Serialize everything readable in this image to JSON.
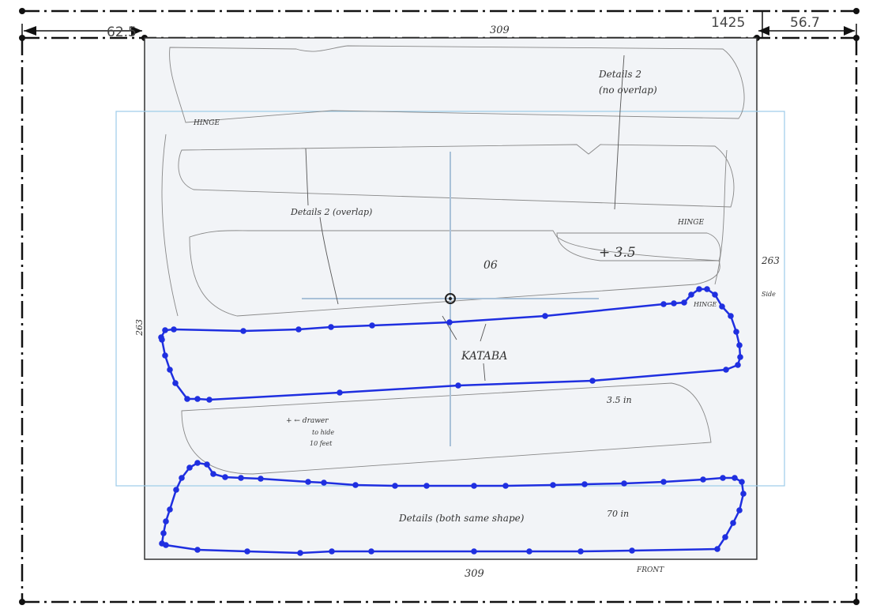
{
  "dimensions": {
    "left_offset": "62.5",
    "top_width": "309",
    "right_offset_a": "1425",
    "right_offset_b": "56.7",
    "right_height": "263",
    "left_height": "263",
    "bottom_width": "309"
  },
  "sketch_annotations": {
    "details_no_overlap": "Details 2",
    "details_no_overlap_sub": "(no overlap)",
    "details_overlap": "Details 2 (overlap)",
    "hinge_top": "HINGE",
    "hinge_mid": "HINGE",
    "hinge_small": "HINGE",
    "label_06": "06",
    "label_35": "+ 3.5",
    "kataba": "KATABA",
    "measure_35": "3.5 in",
    "note_line1": "+ ← drawer",
    "note_line2": "to hide",
    "note_line3": "10 feet",
    "details_same": "Details (both same shape)",
    "measure_70": "70 in",
    "front": "FRONT",
    "side_mark": "Side"
  },
  "colors": {
    "outline": "#1f2fe0",
    "selection_box": "#9ccbe8",
    "crosshair": "#a9c1d8",
    "sheet": "#f2f4f7"
  }
}
